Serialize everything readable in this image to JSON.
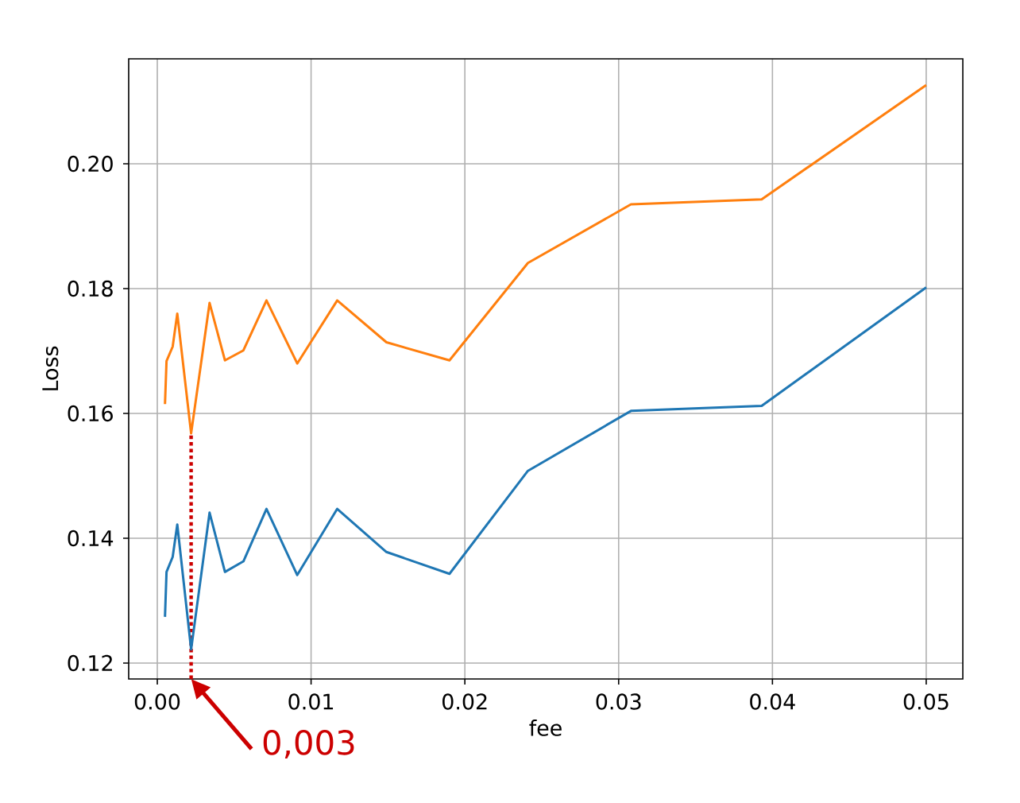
{
  "chart_data": {
    "type": "line",
    "xlabel": "fee",
    "ylabel": "Loss",
    "x": [
      0.0005,
      0.0006,
      0.001,
      0.0013,
      0.0022,
      0.0034,
      0.0044,
      0.0056,
      0.0071,
      0.0091,
      0.0117,
      0.0149,
      0.019,
      0.0241,
      0.0308,
      0.0393,
      0.05
    ],
    "series": [
      {
        "color": "#1f77b4",
        "values": [
          0.1274,
          0.1346,
          0.137,
          0.1422,
          0.1222,
          0.1441,
          0.1346,
          0.1363,
          0.1447,
          0.1341,
          0.1447,
          0.1378,
          0.1343,
          0.1508,
          0.1604,
          0.1612,
          0.1802
        ]
      },
      {
        "color": "#ff7f0e",
        "values": [
          0.1615,
          0.1684,
          0.1707,
          0.176,
          0.1568,
          0.1777,
          0.1685,
          0.1701,
          0.1781,
          0.168,
          0.1781,
          0.1714,
          0.1685,
          0.1841,
          0.1935,
          0.1943,
          0.2126
        ]
      }
    ],
    "xlim": [
      -0.00186,
      0.05238
    ],
    "ylim": [
      0.11745,
      0.21682
    ],
    "xticks": [
      {
        "value": 0,
        "label": "0.00"
      },
      {
        "value": 0.01,
        "label": "0.01"
      },
      {
        "value": 0.02,
        "label": "0.02"
      },
      {
        "value": 0.03,
        "label": "0.03"
      },
      {
        "value": 0.04,
        "label": "0.04"
      },
      {
        "value": 0.05,
        "label": "0.05"
      }
    ],
    "yticks": [
      {
        "value": 0.12,
        "label": "0.12"
      },
      {
        "value": 0.14,
        "label": "0.14"
      },
      {
        "value": 0.16,
        "label": "0.16"
      },
      {
        "value": 0.18,
        "label": "0.18"
      },
      {
        "value": 0.2,
        "label": "0.20"
      }
    ],
    "grid": true,
    "ref_lines": [
      {
        "axis": "x",
        "value": 0.0022,
        "color": "#cc0000",
        "line_style": "dotted"
      }
    ],
    "annotations": [
      {
        "text": "0,003",
        "x": 0.0022,
        "y": 0.11745
      }
    ]
  }
}
